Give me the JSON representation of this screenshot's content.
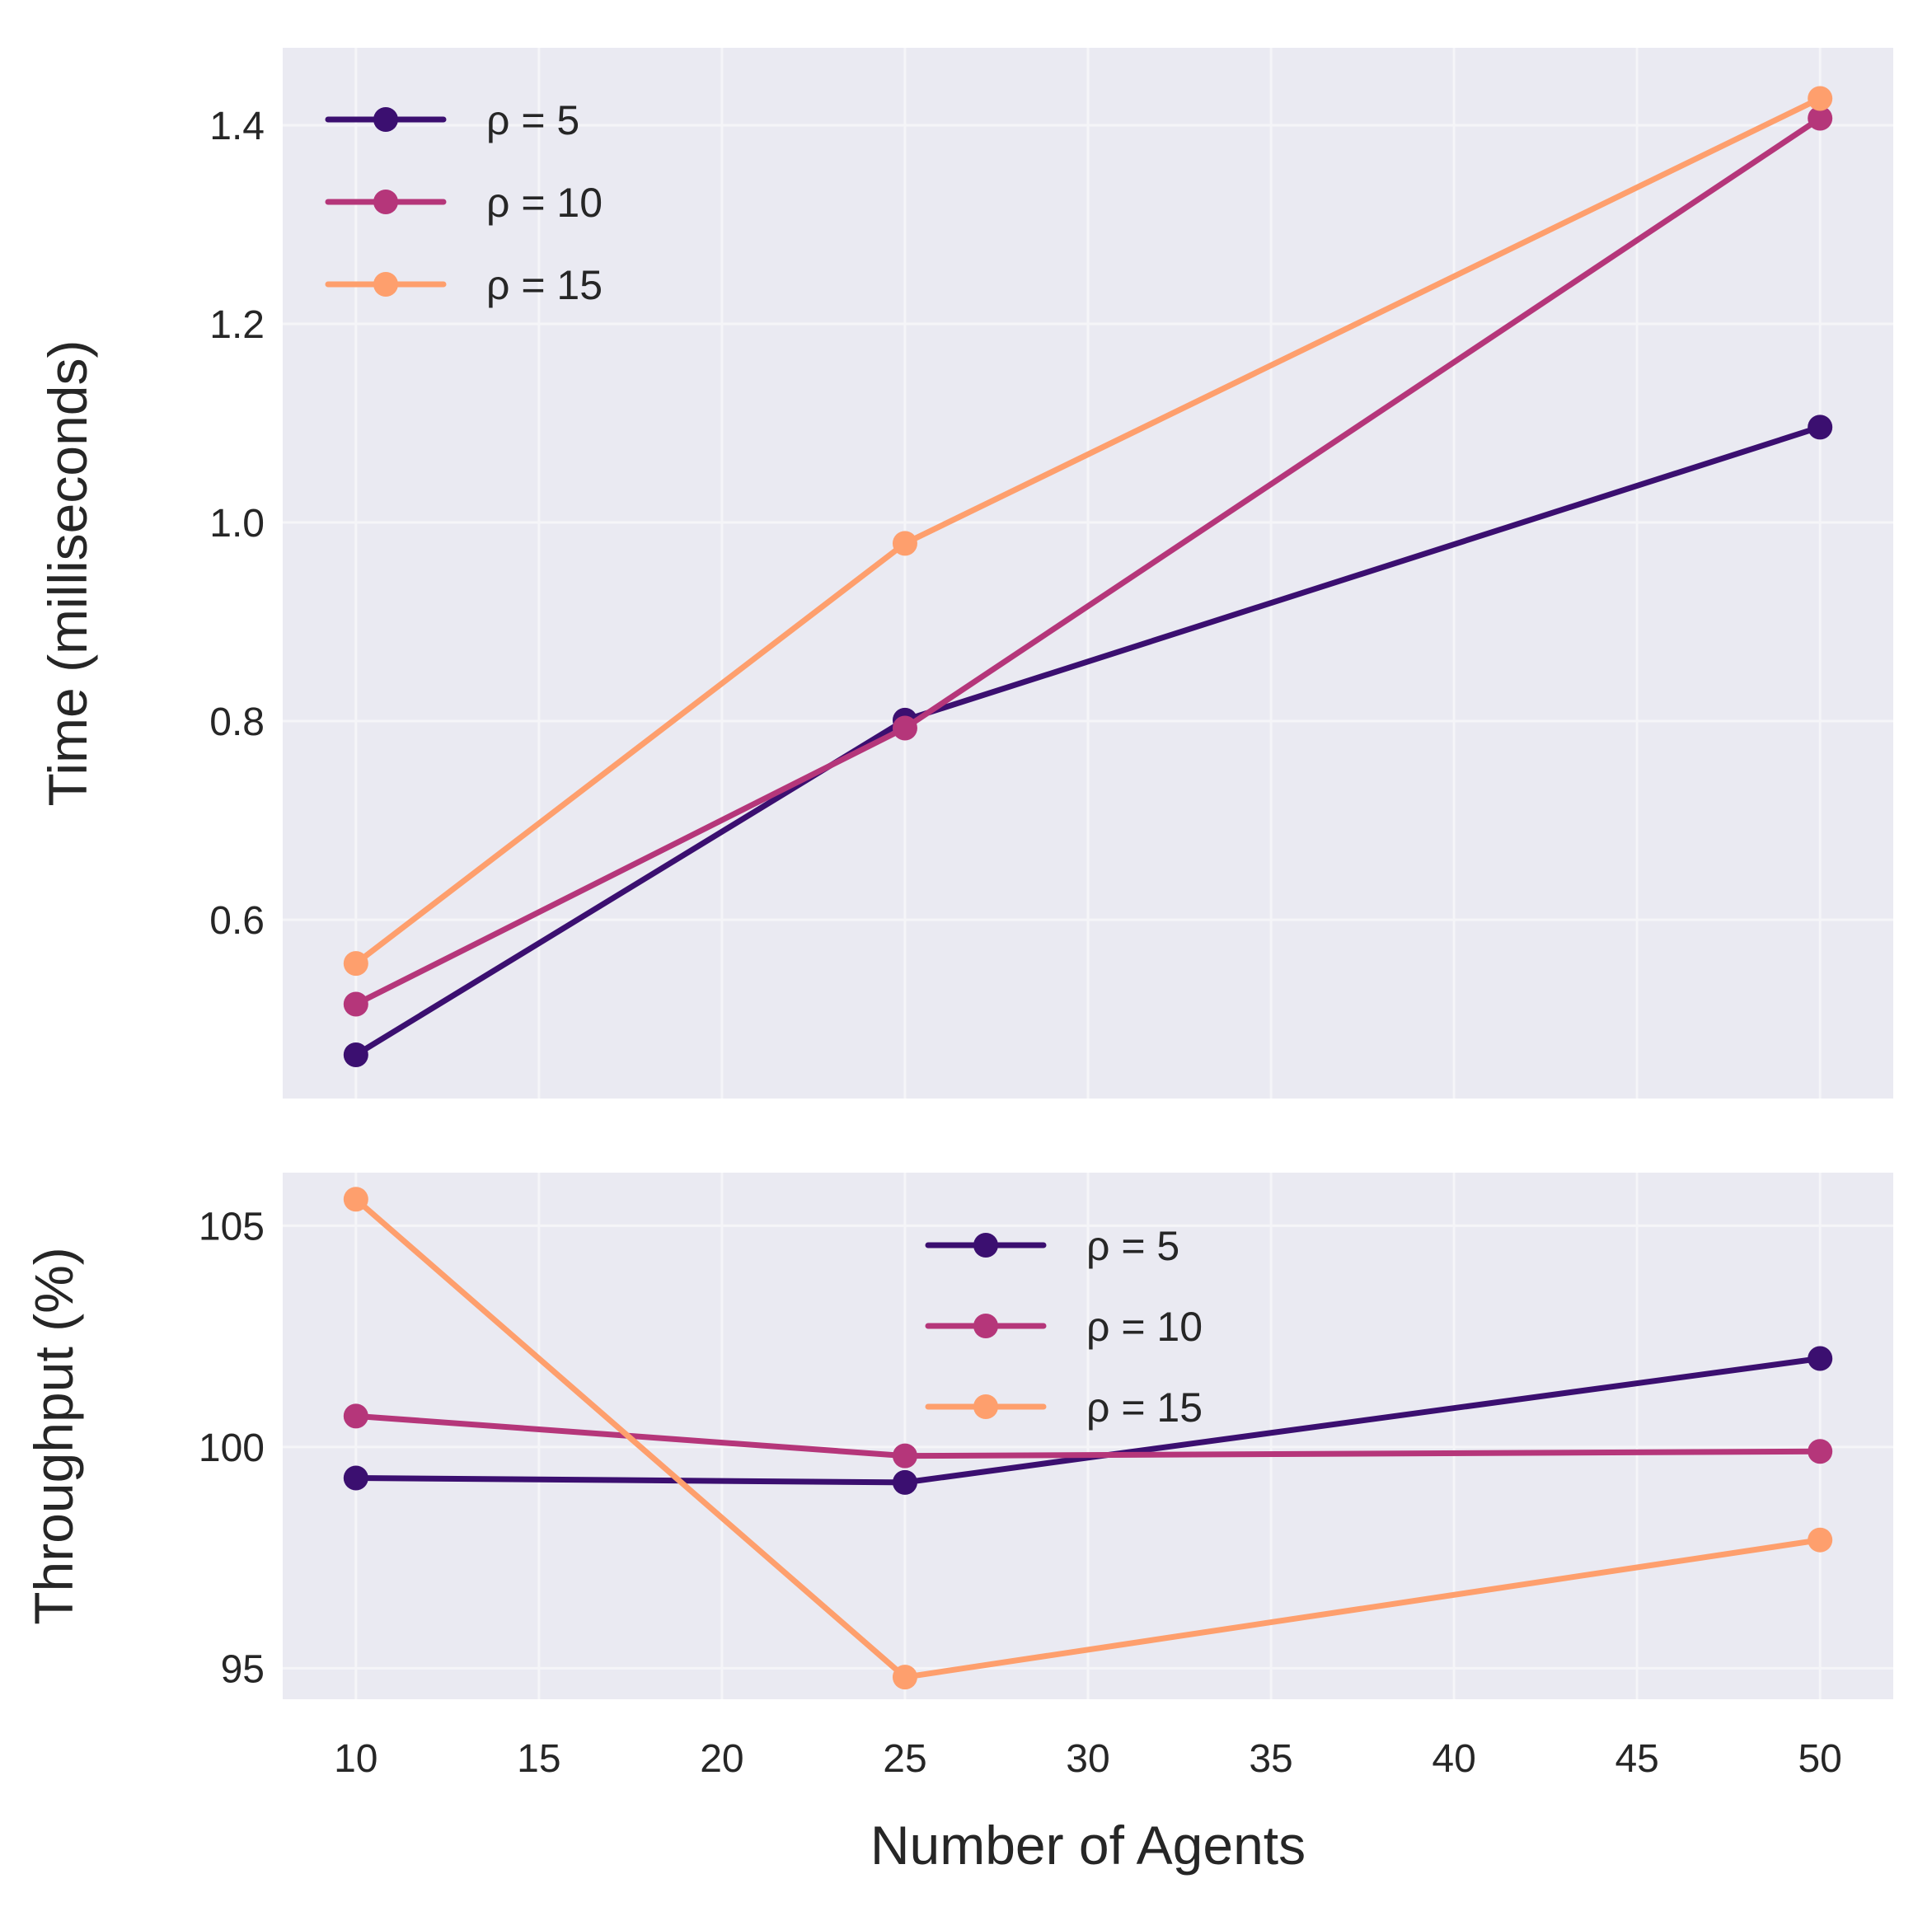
{
  "chart_data": [
    {
      "type": "line",
      "xlabel": "",
      "ylabel": "Time (milliseconds)",
      "x": [
        10,
        25,
        50
      ],
      "xlim": [
        8,
        52
      ],
      "ylim": [
        0.42,
        1.478
      ],
      "xticks": [
        "10",
        "15",
        "20",
        "25",
        "30",
        "35",
        "40",
        "45",
        "50"
      ],
      "yticks": [
        "0.6",
        "0.8",
        "1.0",
        "1.2",
        "1.4"
      ],
      "grid": true,
      "legend_position": "top-left",
      "series": [
        {
          "name": "ρ = 5",
          "color": "#3b0f70",
          "values": [
            0.464,
            0.801,
            1.096
          ]
        },
        {
          "name": "ρ = 10",
          "color": "#b5367a",
          "values": [
            0.515,
            0.793,
            1.407
          ]
        },
        {
          "name": "ρ = 15",
          "color": "#fe9f6d",
          "values": [
            0.556,
            0.979,
            1.427
          ]
        }
      ]
    },
    {
      "type": "line",
      "xlabel": "Number of Agents",
      "ylabel": "Throughput (%)",
      "x": [
        10,
        25,
        50
      ],
      "xlim": [
        8,
        52
      ],
      "ylim": [
        94.3,
        106.2
      ],
      "xticks": [
        "10",
        "15",
        "20",
        "25",
        "30",
        "35",
        "40",
        "45",
        "50"
      ],
      "yticks": [
        "95",
        "100",
        "105"
      ],
      "grid": true,
      "legend_position": "top-center",
      "series": [
        {
          "name": "ρ = 5",
          "color": "#3b0f70",
          "values": [
            99.3,
            99.2,
            102.0
          ]
        },
        {
          "name": "ρ = 10",
          "color": "#b5367a",
          "values": [
            100.7,
            99.8,
            99.9
          ]
        },
        {
          "name": "ρ = 15",
          "color": "#fe9f6d",
          "values": [
            105.6,
            94.8,
            97.9
          ]
        }
      ]
    }
  ]
}
